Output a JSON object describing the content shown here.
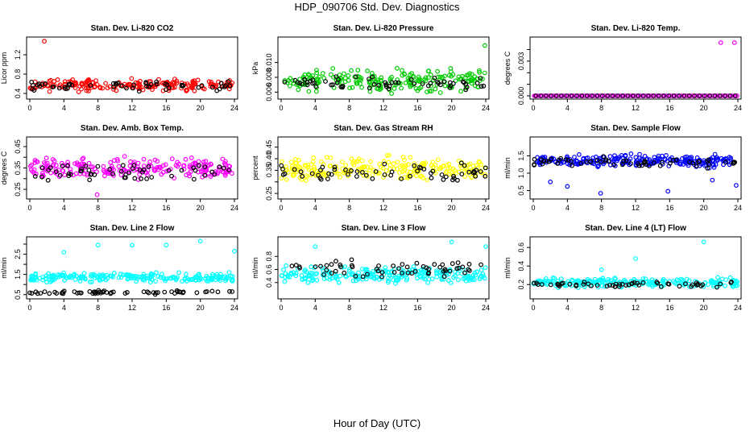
{
  "figure": {
    "title": "HDP_090706  Std. Dev. Diagnostics",
    "xlabel": "Hour of Day (UTC)"
  },
  "colors": {
    "black": "#000000",
    "red": "#ff0000",
    "green": "#00cc00",
    "magenta": "#ff00ff",
    "yellow": "#ffff00",
    "blue": "#0000ff",
    "cyan": "#00ffff"
  },
  "chart_data": [
    {
      "type": "scatter",
      "title": "Stan. Dev. Li-820 CO2",
      "ylabel": "Licor ppm",
      "xlim": [
        0,
        24
      ],
      "ylim": [
        0.35,
        1.5
      ],
      "xticks": [
        0,
        4,
        8,
        12,
        16,
        20,
        24
      ],
      "yticks": [
        0.4,
        0.8,
        1.2
      ],
      "yticklabels": [
        "0.4",
        "0.8",
        "1.2"
      ],
      "grid": false,
      "series": [
        {
          "color": "#ff0000",
          "center": 0.57,
          "spread": 0.1,
          "n": 190,
          "x": [
            1.7
          ],
          "y": [
            1.48
          ]
        },
        {
          "color": "#000000",
          "center": 0.56,
          "spread": 0.08,
          "n": 55,
          "x": [],
          "y": []
        }
      ]
    },
    {
      "type": "scatter",
      "title": "Stan. Dev. Li-820 Pressure",
      "ylabel": "kPa",
      "xlim": [
        0,
        24
      ],
      "ylim": [
        0.0055,
        0.013
      ],
      "xticks": [
        0,
        4,
        8,
        12,
        16,
        20,
        24
      ],
      "yticks": [
        0.006,
        0.008,
        0.01
      ],
      "yticklabels": [
        "0.006",
        "0.008",
        "0.010"
      ],
      "grid": false,
      "series": [
        {
          "color": "#00cc00",
          "center": 0.0076,
          "spread": 0.0012,
          "n": 210,
          "x": [
            23.9
          ],
          "y": [
            0.0123
          ]
        },
        {
          "color": "#000000",
          "center": 0.0072,
          "spread": 0.0007,
          "n": 60,
          "x": [],
          "y": []
        }
      ]
    },
    {
      "type": "scatter",
      "title": "Stan. Dev. Li-820 Temp.",
      "ylabel": "degrees C",
      "xlim": [
        0,
        24
      ],
      "ylim": [
        0,
        0.0048
      ],
      "xticks": [
        0,
        4,
        8,
        12,
        16,
        20,
        24
      ],
      "yticks": [
        0,
        0.001,
        0.002,
        0.003,
        0.004
      ],
      "yticklabels": [
        "0.000",
        "",
        "",
        "0.003",
        ""
      ],
      "grid": false,
      "series": [
        {
          "color": "#ff00ff",
          "x": [
            0.2,
            22.0,
            23.6,
            23.9
          ],
          "y": [
            0,
            0.0046,
            0.0046,
            0
          ],
          "zero_row": true,
          "n": 96
        },
        {
          "color": "#000000",
          "x": [],
          "y": [],
          "zero_row": true,
          "n": 40
        }
      ]
    },
    {
      "type": "scatter",
      "title": "Stan. Dev. Amb. Box Temp.",
      "ylabel": "degrees C",
      "xlim": [
        0,
        24
      ],
      "ylim": [
        0.22,
        0.48
      ],
      "xticks": [
        0,
        4,
        8,
        12,
        16,
        20,
        24
      ],
      "yticks": [
        0.25,
        0.3,
        0.35,
        0.4,
        0.45
      ],
      "yticklabels": [
        "0.25",
        "",
        "0.35",
        "",
        "0.45"
      ],
      "grid": false,
      "series": [
        {
          "color": "#ff00ff",
          "center": 0.345,
          "spread": 0.04,
          "n": 220,
          "x": [
            7.9
          ],
          "y": [
            0.225
          ]
        },
        {
          "color": "#000000",
          "center": 0.33,
          "spread": 0.035,
          "n": 55,
          "x": [],
          "y": []
        }
      ]
    },
    {
      "type": "scatter",
      "title": "Stan. Dev. Gas Stream RH",
      "ylabel": "percent",
      "xlim": [
        0,
        24
      ],
      "ylim": [
        0.24,
        0.48
      ],
      "xticks": [
        0,
        4,
        8,
        12,
        16,
        20,
        24
      ],
      "yticks": [
        0.25,
        0.3,
        0.35,
        0.4,
        0.45
      ],
      "yticklabels": [
        "0.25",
        "",
        "0.35",
        "0.40",
        "0.45"
      ],
      "grid": false,
      "series": [
        {
          "color": "#ffff00",
          "center": 0.355,
          "spread": 0.04,
          "n": 230,
          "x": [],
          "y": []
        },
        {
          "color": "#000000",
          "center": 0.345,
          "spread": 0.035,
          "n": 60,
          "x": [],
          "y": []
        }
      ]
    },
    {
      "type": "scatter",
      "title": "Stan. Dev. Sample Flow",
      "ylabel": "ml/min",
      "xlim": [
        0,
        24
      ],
      "ylim": [
        0.35,
        1.95
      ],
      "xticks": [
        0,
        4,
        8,
        12,
        16,
        20,
        24
      ],
      "yticks": [
        0.5,
        1.0,
        1.5
      ],
      "yticklabels": [
        "0.5",
        "1.0",
        "1.5"
      ],
      "grid": false,
      "series": [
        {
          "color": "#0000ff",
          "center": 1.35,
          "spread": 0.15,
          "n": 240,
          "x": [
            7.9,
            15.8,
            23.8,
            4.0,
            2.0,
            21.0
          ],
          "y": [
            0.42,
            0.48,
            0.65,
            0.62,
            0.75,
            0.8
          ]
        },
        {
          "color": "#000000",
          "center": 1.32,
          "spread": 0.12,
          "n": 60,
          "x": [],
          "y": []
        }
      ]
    },
    {
      "type": "scatter",
      "title": "Stan. Dev. Line 2 Flow",
      "ylabel": "ml/min",
      "xlim": [
        0,
        24
      ],
      "ylim": [
        0.45,
        3.2
      ],
      "xticks": [
        0,
        4,
        8,
        12,
        16,
        20,
        24
      ],
      "yticks": [
        0.5,
        1.0,
        1.5,
        2.0,
        2.5,
        3.0
      ],
      "yticklabels": [
        "0.5",
        "",
        "1.5",
        "",
        "2.5",
        ""
      ],
      "grid": false,
      "series": [
        {
          "color": "#00ffff",
          "center": 1.35,
          "spread": 0.18,
          "n": 220,
          "x": [
            4.0,
            8.0,
            12.0,
            16.0,
            20.0,
            24.0
          ],
          "y": [
            2.6,
            2.95,
            2.95,
            2.95,
            3.15,
            2.65
          ]
        },
        {
          "color": "#000000",
          "center": 0.62,
          "spread": 0.07,
          "n": 60,
          "x": [],
          "y": []
        }
      ]
    },
    {
      "type": "scatter",
      "title": "Stan. Dev. Line 3 Flow",
      "ylabel": "ml/min",
      "xlim": [
        0,
        24
      ],
      "ylim": [
        0.2,
        1.05
      ],
      "xticks": [
        0,
        4,
        8,
        12,
        16,
        20,
        24
      ],
      "yticks": [
        0.4,
        0.6,
        0.8
      ],
      "yticklabels": [
        "0.4",
        "0.6",
        "0.8"
      ],
      "grid": false,
      "series": [
        {
          "color": "#00ffff",
          "center": 0.52,
          "spread": 0.1,
          "n": 230,
          "x": [
            4.0,
            20.0,
            24.0
          ],
          "y": [
            0.95,
            1.02,
            0.95
          ]
        },
        {
          "color": "#000000",
          "center": 0.6,
          "spread": 0.1,
          "n": 60,
          "x": [],
          "y": []
        }
      ]
    },
    {
      "type": "scatter",
      "title": "Stan. Dev. Line 4 (LT) Flow",
      "ylabel": "ml/min",
      "xlim": [
        0,
        24
      ],
      "ylim": [
        0.08,
        0.68
      ],
      "xticks": [
        0,
        4,
        8,
        12,
        16,
        20,
        24
      ],
      "yticks": [
        0.2,
        0.4,
        0.6
      ],
      "yticklabels": [
        "0.2",
        "0.4",
        "0.6"
      ],
      "grid": false,
      "series": [
        {
          "color": "#00ffff",
          "center": 0.22,
          "spread": 0.04,
          "n": 220,
          "x": [
            20.0,
            12.0,
            8.0
          ],
          "y": [
            0.66,
            0.48,
            0.36
          ]
        },
        {
          "color": "#000000",
          "center": 0.2,
          "spread": 0.03,
          "n": 55,
          "x": [],
          "y": []
        }
      ]
    }
  ]
}
